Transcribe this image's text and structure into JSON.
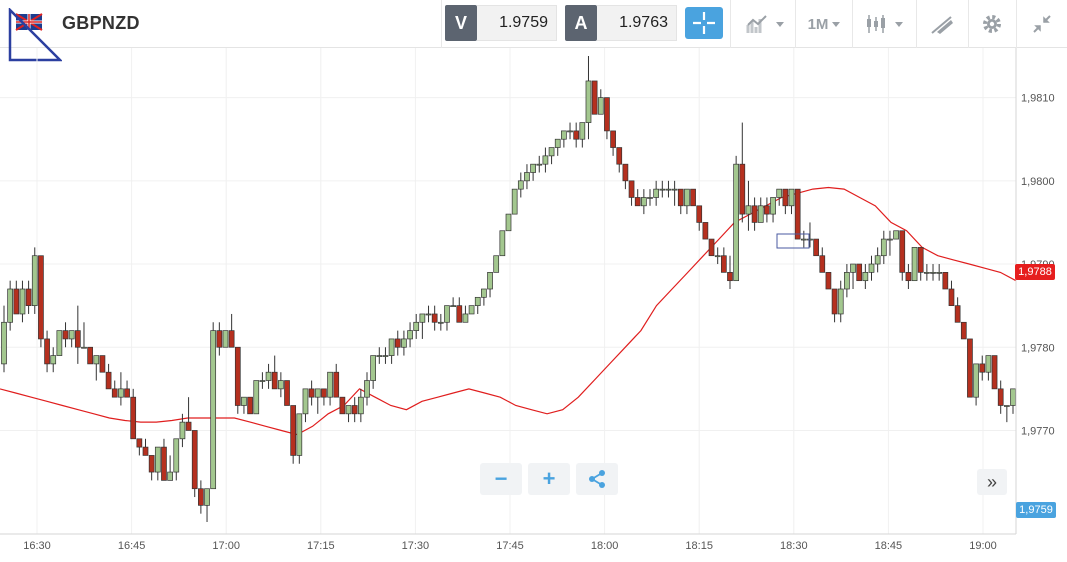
{
  "header": {
    "symbol": "GBPNZD",
    "bid_label": "V",
    "bid_value": "1.9759",
    "ask_label": "A",
    "ask_value": "1.9763",
    "timeframe": "1M",
    "icons": [
      "flag-icon",
      "crosshair-icon",
      "chart-type-icon",
      "timeframe-icon",
      "indicator-icon",
      "drawing-icon",
      "gear-icon",
      "collapse-icon"
    ]
  },
  "price_tags": {
    "last": "1,9788",
    "current": "1,9759"
  },
  "controls": {
    "zoom_out": "−",
    "zoom_in": "+",
    "scroll_right": "»"
  },
  "colors": {
    "up": "#a3c78f",
    "down": "#b5301f",
    "ma": "#e01e1e",
    "accent": "#4aa3df"
  },
  "chart_data": {
    "type": "candlestick",
    "xlabel": "",
    "ylabel": "",
    "x_ticks": [
      "16:30",
      "16:45",
      "17:00",
      "17:15",
      "17:30",
      "17:45",
      "18:00",
      "18:15",
      "18:30",
      "18:45",
      "19:00"
    ],
    "y_ticks": [
      "1,9770",
      "1,9780",
      "1,9790",
      "1,9800",
      "1,9810"
    ],
    "y_tick_values": [
      1.977,
      1.978,
      1.979,
      1.98,
      1.981
    ],
    "ylim": [
      1.9759,
      1.9815
    ],
    "grid": true,
    "candles_ohlc": [
      [
        1.9778,
        1.9785,
        1.9777,
        1.9783
      ],
      [
        1.9783,
        1.9788,
        1.9782,
        1.9787
      ],
      [
        1.9787,
        1.9788,
        1.9784,
        1.9784
      ],
      [
        1.9784,
        1.9788,
        1.9783,
        1.9787
      ],
      [
        1.9787,
        1.9788,
        1.9784,
        1.9785
      ],
      [
        1.9785,
        1.9792,
        1.9784,
        1.9791
      ],
      [
        1.9791,
        1.9791,
        1.978,
        1.9781
      ],
      [
        1.9781,
        1.9782,
        1.9777,
        1.9778
      ],
      [
        1.9778,
        1.978,
        1.9777,
        1.9779
      ],
      [
        1.9779,
        1.9782,
        1.9779,
        1.9782
      ],
      [
        1.9782,
        1.9783,
        1.978,
        1.9781
      ],
      [
        1.9781,
        1.9782,
        1.978,
        1.9782
      ],
      [
        1.9782,
        1.9785,
        1.9778,
        1.978
      ],
      [
        1.978,
        1.9783,
        1.978,
        1.978
      ],
      [
        1.978,
        1.978,
        1.9778,
        1.9778
      ],
      [
        1.9778,
        1.9779,
        1.9776,
        1.9779
      ],
      [
        1.9779,
        1.9779,
        1.9777,
        1.9777
      ],
      [
        1.9777,
        1.9778,
        1.9775,
        1.9775
      ],
      [
        1.9775,
        1.9776,
        1.9774,
        1.9774
      ],
      [
        1.9774,
        1.9777,
        1.9773,
        1.9775
      ],
      [
        1.9775,
        1.9776,
        1.9774,
        1.9774
      ],
      [
        1.9774,
        1.9775,
        1.9769,
        1.9769
      ],
      [
        1.9769,
        1.9769,
        1.9767,
        1.9768
      ],
      [
        1.9768,
        1.9769,
        1.9767,
        1.9767
      ],
      [
        1.9767,
        1.9767,
        1.9764,
        1.9765
      ],
      [
        1.9765,
        1.9768,
        1.9764,
        1.9768
      ],
      [
        1.9768,
        1.9769,
        1.9764,
        1.9764
      ],
      [
        1.9764,
        1.9767,
        1.9764,
        1.9765
      ],
      [
        1.9765,
        1.9769,
        1.9764,
        1.9769
      ],
      [
        1.9769,
        1.9772,
        1.9768,
        1.9771
      ],
      [
        1.9771,
        1.9774,
        1.977,
        1.977
      ],
      [
        1.977,
        1.977,
        1.9762,
        1.9763
      ],
      [
        1.9763,
        1.9764,
        1.976,
        1.9761
      ],
      [
        1.9761,
        1.9763,
        1.9759,
        1.9763
      ],
      [
        1.9763,
        1.9783,
        1.9763,
        1.9782
      ],
      [
        1.9782,
        1.9783,
        1.9779,
        1.978
      ],
      [
        1.978,
        1.9782,
        1.978,
        1.9782
      ],
      [
        1.9782,
        1.9784,
        1.978,
        1.978
      ],
      [
        1.978,
        1.978,
        1.9772,
        1.9773
      ],
      [
        1.9773,
        1.9774,
        1.9772,
        1.9774
      ],
      [
        1.9774,
        1.9774,
        1.9772,
        1.9772
      ],
      [
        1.9772,
        1.9776,
        1.9772,
        1.9776
      ],
      [
        1.9776,
        1.9777,
        1.9775,
        1.9776
      ],
      [
        1.9776,
        1.9778,
        1.9775,
        1.9777
      ],
      [
        1.9777,
        1.9779,
        1.9775,
        1.9775
      ],
      [
        1.9775,
        1.9777,
        1.9774,
        1.9776
      ],
      [
        1.9776,
        1.9776,
        1.9773,
        1.9773
      ],
      [
        1.9773,
        1.9773,
        1.9766,
        1.9767
      ],
      [
        1.9767,
        1.9772,
        1.9766,
        1.9772
      ],
      [
        1.9772,
        1.9775,
        1.9771,
        1.9775
      ],
      [
        1.9775,
        1.9776,
        1.9773,
        1.9774
      ],
      [
        1.9774,
        1.9775,
        1.9772,
        1.9775
      ],
      [
        1.9775,
        1.9775,
        1.9773,
        1.9774
      ],
      [
        1.9774,
        1.9777,
        1.9773,
        1.9777
      ],
      [
        1.9777,
        1.9778,
        1.9774,
        1.9774
      ],
      [
        1.9774,
        1.9774,
        1.9772,
        1.9772
      ],
      [
        1.9772,
        1.9773,
        1.9771,
        1.9773
      ],
      [
        1.9773,
        1.9774,
        1.9771,
        1.9772
      ],
      [
        1.9772,
        1.9775,
        1.9771,
        1.9774
      ],
      [
        1.9774,
        1.9777,
        1.9773,
        1.9776
      ],
      [
        1.9776,
        1.9779,
        1.9775,
        1.9779
      ],
      [
        1.9779,
        1.978,
        1.9778,
        1.9779
      ],
      [
        1.9779,
        1.978,
        1.9778,
        1.9779
      ],
      [
        1.9779,
        1.9781,
        1.9778,
        1.9781
      ],
      [
        1.9781,
        1.9782,
        1.9779,
        1.978
      ],
      [
        1.978,
        1.9782,
        1.9779,
        1.9781
      ],
      [
        1.9781,
        1.9783,
        1.978,
        1.9782
      ],
      [
        1.9782,
        1.9784,
        1.9781,
        1.9783
      ],
      [
        1.9783,
        1.9784,
        1.9781,
        1.9784
      ],
      [
        1.9784,
        1.9785,
        1.9783,
        1.9784
      ],
      [
        1.9784,
        1.9785,
        1.9782,
        1.9783
      ],
      [
        1.9783,
        1.9784,
        1.9782,
        1.9783
      ],
      [
        1.9783,
        1.9785,
        1.9782,
        1.9785
      ],
      [
        1.9785,
        1.9786,
        1.9785,
        1.9785
      ],
      [
        1.9785,
        1.9786,
        1.9783,
        1.9783
      ],
      [
        1.9783,
        1.9785,
        1.9783,
        1.9784
      ],
      [
        1.9784,
        1.9785,
        1.9784,
        1.9785
      ],
      [
        1.9785,
        1.9786,
        1.9784,
        1.9786
      ],
      [
        1.9786,
        1.9787,
        1.9785,
        1.9787
      ],
      [
        1.9787,
        1.9789,
        1.9786,
        1.9789
      ],
      [
        1.9789,
        1.9791,
        1.9789,
        1.9791
      ],
      [
        1.9791,
        1.9794,
        1.9791,
        1.9794
      ],
      [
        1.9794,
        1.9796,
        1.9794,
        1.9796
      ],
      [
        1.9796,
        1.9799,
        1.9796,
        1.9799
      ],
      [
        1.9799,
        1.9801,
        1.9798,
        1.98
      ],
      [
        1.98,
        1.9802,
        1.9799,
        1.9801
      ],
      [
        1.9801,
        1.9802,
        1.98,
        1.9802
      ],
      [
        1.9802,
        1.9803,
        1.9801,
        1.9802
      ],
      [
        1.9802,
        1.9804,
        1.9801,
        1.9803
      ],
      [
        1.9803,
        1.9804,
        1.9802,
        1.9804
      ],
      [
        1.9804,
        1.9805,
        1.9803,
        1.9805
      ],
      [
        1.9805,
        1.9806,
        1.9804,
        1.9806
      ],
      [
        1.9806,
        1.9807,
        1.9805,
        1.9806
      ],
      [
        1.9806,
        1.9807,
        1.9804,
        1.9805
      ],
      [
        1.9805,
        1.9807,
        1.9804,
        1.9807
      ],
      [
        1.9807,
        1.9815,
        1.9805,
        1.9812
      ],
      [
        1.9812,
        1.9812,
        1.9808,
        1.9808
      ],
      [
        1.9808,
        1.9811,
        1.9808,
        1.981
      ],
      [
        1.981,
        1.981,
        1.9805,
        1.9806
      ],
      [
        1.9806,
        1.9806,
        1.9803,
        1.9804
      ],
      [
        1.9804,
        1.9804,
        1.9801,
        1.9802
      ],
      [
        1.9802,
        1.9802,
        1.9799,
        1.98
      ],
      [
        1.98,
        1.98,
        1.9797,
        1.9798
      ],
      [
        1.9798,
        1.9799,
        1.9797,
        1.9797
      ],
      [
        1.9797,
        1.9799,
        1.9796,
        1.9798
      ],
      [
        1.9798,
        1.9799,
        1.9797,
        1.9798
      ],
      [
        1.9798,
        1.98,
        1.9797,
        1.9799
      ],
      [
        1.9799,
        1.98,
        1.9798,
        1.9799
      ],
      [
        1.9799,
        1.98,
        1.9798,
        1.9799
      ],
      [
        1.9799,
        1.98,
        1.9797,
        1.9799
      ],
      [
        1.9799,
        1.9799,
        1.9796,
        1.9797
      ],
      [
        1.9797,
        1.9799,
        1.9796,
        1.9799
      ],
      [
        1.9799,
        1.9799,
        1.9797,
        1.9797
      ],
      [
        1.9797,
        1.9797,
        1.9794,
        1.9795
      ],
      [
        1.9795,
        1.9795,
        1.9793,
        1.9793
      ],
      [
        1.9793,
        1.9793,
        1.9791,
        1.9791
      ],
      [
        1.9791,
        1.9792,
        1.979,
        1.9791
      ],
      [
        1.9791,
        1.9792,
        1.9789,
        1.9789
      ],
      [
        1.9789,
        1.9791,
        1.9787,
        1.9788
      ],
      [
        1.9788,
        1.9803,
        1.9788,
        1.9802
      ],
      [
        1.9802,
        1.9807,
        1.9795,
        1.9796
      ],
      [
        1.9796,
        1.98,
        1.9794,
        1.9797
      ],
      [
        1.9797,
        1.9798,
        1.9794,
        1.9795
      ],
      [
        1.9795,
        1.9798,
        1.9795,
        1.9797
      ],
      [
        1.9797,
        1.9798,
        1.9795,
        1.9796
      ],
      [
        1.9796,
        1.9798,
        1.9795,
        1.9798
      ],
      [
        1.9798,
        1.9799,
        1.9797,
        1.9799
      ],
      [
        1.9799,
        1.9799,
        1.9796,
        1.9797
      ],
      [
        1.9797,
        1.9799,
        1.9796,
        1.9799
      ],
      [
        1.9799,
        1.9799,
        1.9793,
        1.9793
      ],
      [
        1.9793,
        1.9794,
        1.9792,
        1.9793
      ],
      [
        1.9793,
        1.9795,
        1.9792,
        1.9793
      ],
      [
        1.9793,
        1.9793,
        1.9791,
        1.9791
      ],
      [
        1.9791,
        1.9792,
        1.9789,
        1.9789
      ],
      [
        1.9789,
        1.9789,
        1.9787,
        1.9787
      ],
      [
        1.9787,
        1.9787,
        1.9783,
        1.9784
      ],
      [
        1.9784,
        1.9788,
        1.9783,
        1.9787
      ],
      [
        1.9787,
        1.979,
        1.9786,
        1.9789
      ],
      [
        1.9789,
        1.979,
        1.9787,
        1.979
      ],
      [
        1.979,
        1.979,
        1.9788,
        1.9788
      ],
      [
        1.9788,
        1.979,
        1.9787,
        1.9789
      ],
      [
        1.9789,
        1.9791,
        1.9788,
        1.979
      ],
      [
        1.979,
        1.9792,
        1.9789,
        1.9791
      ],
      [
        1.9791,
        1.9794,
        1.979,
        1.9793
      ],
      [
        1.9793,
        1.9794,
        1.9791,
        1.9793
      ],
      [
        1.9793,
        1.9794,
        1.9793,
        1.9794
      ],
      [
        1.9794,
        1.9794,
        1.9788,
        1.9789
      ],
      [
        1.9789,
        1.979,
        1.9787,
        1.9788
      ],
      [
        1.9788,
        1.9792,
        1.9788,
        1.9792
      ],
      [
        1.9792,
        1.9792,
        1.9788,
        1.9789
      ],
      [
        1.9789,
        1.979,
        1.9788,
        1.9789
      ],
      [
        1.9789,
        1.979,
        1.9788,
        1.9789
      ],
      [
        1.9789,
        1.979,
        1.9788,
        1.9789
      ],
      [
        1.9789,
        1.9789,
        1.9787,
        1.9787
      ],
      [
        1.9787,
        1.9788,
        1.9785,
        1.9785
      ],
      [
        1.9785,
        1.9786,
        1.9783,
        1.9783
      ],
      [
        1.9783,
        1.9783,
        1.9781,
        1.9781
      ],
      [
        1.9781,
        1.9781,
        1.9774,
        1.9774
      ],
      [
        1.9774,
        1.9778,
        1.9773,
        1.9778
      ],
      [
        1.9778,
        1.9779,
        1.9776,
        1.9777
      ],
      [
        1.9777,
        1.9779,
        1.9776,
        1.9779
      ],
      [
        1.9779,
        1.9779,
        1.9775,
        1.9775
      ],
      [
        1.9775,
        1.9776,
        1.9772,
        1.9773
      ],
      [
        1.9773,
        1.9773,
        1.9771,
        1.9773
      ],
      [
        1.9773,
        1.9775,
        1.9772,
        1.9775
      ]
    ],
    "ma_series": [
      {
        "values": [
          1.9775,
          1.97745,
          1.9774,
          1.97735,
          1.9773,
          1.97725,
          1.9772,
          1.97715,
          1.97712,
          1.9771,
          1.9771,
          1.97712,
          1.97715,
          1.97715,
          1.97715,
          1.97715,
          1.9771,
          1.97705,
          1.977,
          1.97695,
          1.97705,
          1.9772,
          1.9773,
          1.9775,
          1.9774,
          1.9773,
          1.97725,
          1.97735,
          1.9774,
          1.97745,
          1.9775,
          1.97745,
          1.9774,
          1.9773,
          1.97725,
          1.9772,
          1.97725,
          1.9774,
          1.9776,
          1.9778,
          1.978,
          1.9782,
          1.9785,
          1.9787,
          1.9789,
          1.9791,
          1.9793,
          1.9795,
          1.9796,
          1.9797,
          1.9798,
          1.97985,
          1.9799,
          1.97992,
          1.9799,
          1.9798,
          1.9797,
          1.9795,
          1.9794,
          1.9792,
          1.9791,
          1.97905,
          1.979,
          1.97895,
          1.9789,
          1.9788
        ]
      }
    ]
  }
}
